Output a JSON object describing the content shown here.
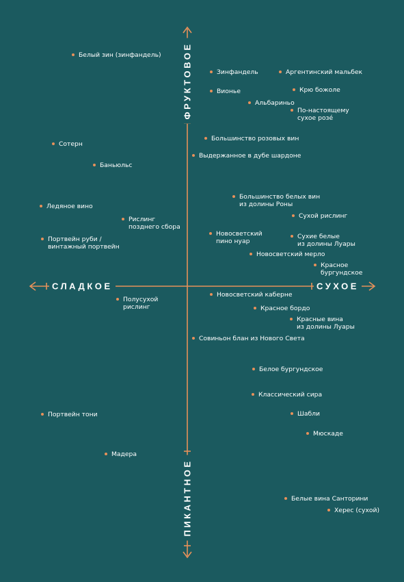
{
  "colors": {
    "background": "#1b5a5f",
    "accent": "#e8915a",
    "text": "#ffffff"
  },
  "axes": {
    "top": "ФРУКТОВОЕ",
    "bottom": "ПИКАНТНОЕ",
    "left": "СЛАДКОЕ",
    "right": "СУХОЕ"
  },
  "wines": [
    {
      "lines": [
        "Белый зин (зинфандель)"
      ]
    },
    {
      "lines": [
        "Зинфандель"
      ]
    },
    {
      "lines": [
        "Аргентинский мальбек"
      ]
    },
    {
      "lines": [
        "Вионье"
      ]
    },
    {
      "lines": [
        "Крю божоле"
      ]
    },
    {
      "lines": [
        "Альбариньо"
      ]
    },
    {
      "lines": [
        "По-настоящему",
        "сухое розé"
      ]
    },
    {
      "lines": [
        "Большинство розовых вин"
      ]
    },
    {
      "lines": [
        "Сотерн"
      ]
    },
    {
      "lines": [
        "Выдержанное в дубе шардоне"
      ]
    },
    {
      "lines": [
        "Баньюльс"
      ]
    },
    {
      "lines": [
        "Большинство белых вин",
        "из долины Роны"
      ]
    },
    {
      "lines": [
        "Ледяное вино"
      ]
    },
    {
      "lines": [
        "Сухой рислинг"
      ]
    },
    {
      "lines": [
        "Рислинг",
        "позднего сбора"
      ]
    },
    {
      "lines": [
        "Новосветский",
        "пино нуар"
      ]
    },
    {
      "lines": [
        "Сухие белые",
        "из долины Луары"
      ]
    },
    {
      "lines": [
        "Портвейн руби /",
        "винтажный портвейн"
      ]
    },
    {
      "lines": [
        "Новосветский мерло"
      ]
    },
    {
      "lines": [
        "Красное",
        "бургундское"
      ]
    },
    {
      "lines": [
        "Новосветский каберне"
      ]
    },
    {
      "lines": [
        "Полусухой",
        "рислинг"
      ]
    },
    {
      "lines": [
        "Красное бордо"
      ]
    },
    {
      "lines": [
        "Красные вина",
        "из долины Луары"
      ]
    },
    {
      "lines": [
        "Совиньон блан из Нового Света"
      ]
    },
    {
      "lines": [
        "Белое бургундское"
      ]
    },
    {
      "lines": [
        "Классический сира"
      ]
    },
    {
      "lines": [
        "Портвейн тони"
      ]
    },
    {
      "lines": [
        "Шабли"
      ]
    },
    {
      "lines": [
        "Мюскаде"
      ]
    },
    {
      "lines": [
        "Мадера"
      ]
    },
    {
      "lines": [
        "Белые вина Санторини"
      ]
    },
    {
      "lines": [
        "Херес (сухой)"
      ]
    }
  ]
}
